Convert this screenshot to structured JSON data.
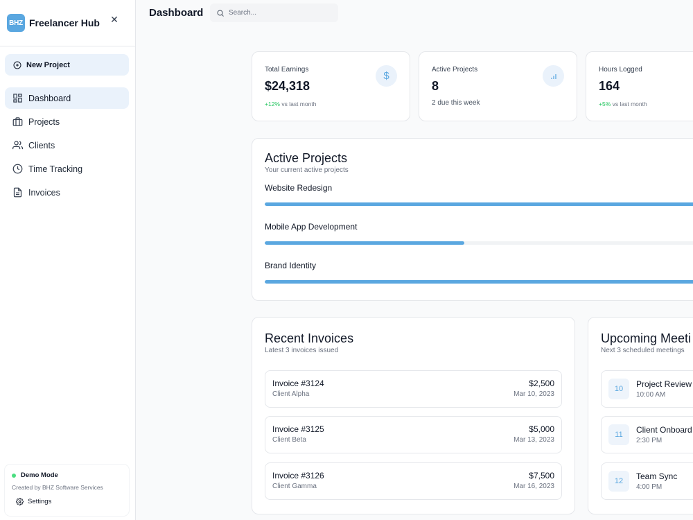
{
  "brand": {
    "logo_text": "BHZ",
    "name": "Freelancer Hub"
  },
  "sidebar": {
    "close_icon": "close-icon",
    "new_project_label": "New Project",
    "items": [
      {
        "label": "Dashboard",
        "icon": "grid-icon",
        "active": true
      },
      {
        "label": "Projects",
        "icon": "briefcase-icon",
        "active": false
      },
      {
        "label": "Clients",
        "icon": "users-icon",
        "active": false
      },
      {
        "label": "Time Tracking",
        "icon": "clock-icon",
        "active": false
      },
      {
        "label": "Invoices",
        "icon": "document-icon",
        "active": false
      }
    ],
    "footer": {
      "mode": "Demo Mode",
      "created_by": "Created by BHZ Software Services",
      "settings_label": "Settings"
    }
  },
  "header": {
    "title": "Dashboard",
    "search_placeholder": "Search..."
  },
  "stats": [
    {
      "label": "Total Earnings",
      "value": "$24,318",
      "delta": "+12%",
      "sub": "vs last month",
      "icon": "dollar-icon"
    },
    {
      "label": "Active Projects",
      "value": "8",
      "sub": "2 due this week",
      "icon": "bar-chart-icon"
    },
    {
      "label": "Hours Logged",
      "value": "164",
      "delta": "+5%",
      "sub": "vs last month"
    }
  ],
  "active_projects": {
    "title": "Active Projects",
    "subtitle": "Your current active projects",
    "items": [
      {
        "name": "Website Redesign",
        "progress": 1.0
      },
      {
        "name": "Mobile App Development",
        "progress": 0.45
      },
      {
        "name": "Brand Identity",
        "progress": 1.0
      }
    ]
  },
  "invoices": {
    "title": "Recent Invoices",
    "subtitle": "Latest 3 invoices issued",
    "items": [
      {
        "number": "Invoice #3124",
        "client": "Client Alpha",
        "amount": "$2,500",
        "date": "Mar 10, 2023"
      },
      {
        "number": "Invoice #3125",
        "client": "Client Beta",
        "amount": "$5,000",
        "date": "Mar 13, 2023"
      },
      {
        "number": "Invoice #3126",
        "client": "Client Gamma",
        "amount": "$7,500",
        "date": "Mar 16, 2023"
      }
    ]
  },
  "meetings": {
    "title": "Upcoming Meeti",
    "subtitle": "Next 3 scheduled meetings",
    "items": [
      {
        "day": "10",
        "title": "Project Review",
        "time": "10:00 AM"
      },
      {
        "day": "11",
        "title": "Client Onboard",
        "time": "2:30 PM"
      },
      {
        "day": "12",
        "title": "Team Sync",
        "time": "4:00 PM"
      }
    ]
  },
  "colors": {
    "accent": "#5aa7e0",
    "accent_light": "#eaf2fb",
    "positive": "#22c55e",
    "demo_dot": "#4ade80"
  }
}
